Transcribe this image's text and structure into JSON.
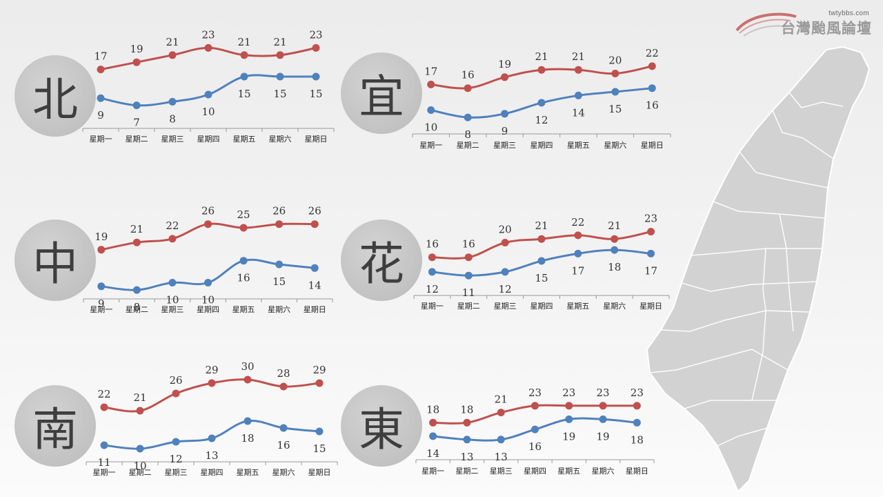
{
  "logo": {
    "site": "twtybbs.com",
    "brand": "台灣颱風論壇"
  },
  "colors": {
    "high": "#c0504d",
    "low": "#4f81bd",
    "axis": "#999999",
    "text": "#333333"
  },
  "regions": [
    {
      "id": "north",
      "char": "北"
    },
    {
      "id": "yilan",
      "char": "宜"
    },
    {
      "id": "central",
      "char": "中"
    },
    {
      "id": "hualien",
      "char": "花"
    },
    {
      "id": "south",
      "char": "南"
    },
    {
      "id": "east",
      "char": "東"
    }
  ],
  "chart_data": [
    {
      "type": "line",
      "region": "北",
      "categories": [
        "星期一",
        "星期二",
        "星期三",
        "星期四",
        "星期五",
        "星期六",
        "星期日"
      ],
      "series": [
        {
          "values": [
            17,
            19,
            21,
            23,
            21,
            21,
            23
          ]
        },
        {
          "values": [
            9,
            7,
            8,
            10,
            15,
            15,
            15
          ]
        }
      ]
    },
    {
      "type": "line",
      "region": "宜",
      "categories": [
        "星期一",
        "星期二",
        "星期三",
        "星期四",
        "星期五",
        "星期六",
        "星期日"
      ],
      "series": [
        {
          "values": [
            17,
            16,
            19,
            21,
            21,
            20,
            22
          ]
        },
        {
          "values": [
            10,
            8,
            9,
            12,
            14,
            15,
            16
          ]
        }
      ]
    },
    {
      "type": "line",
      "region": "中",
      "categories": [
        "星期一",
        "星期二",
        "星期三",
        "星期四",
        "星期五",
        "星期六",
        "星期日"
      ],
      "series": [
        {
          "values": [
            19,
            21,
            22,
            26,
            25,
            26,
            26
          ]
        },
        {
          "values": [
            9,
            8,
            10,
            10,
            16,
            15,
            14
          ]
        }
      ]
    },
    {
      "type": "line",
      "region": "花",
      "categories": [
        "星期一",
        "星期二",
        "星期三",
        "星期四",
        "星期五",
        "星期六",
        "星期日"
      ],
      "series": [
        {
          "values": [
            16,
            16,
            20,
            21,
            22,
            21,
            23
          ]
        },
        {
          "values": [
            12,
            11,
            12,
            15,
            17,
            18,
            17
          ]
        }
      ]
    },
    {
      "type": "line",
      "region": "南",
      "categories": [
        "星期一",
        "星期二",
        "星期三",
        "星期四",
        "星期五",
        "星期六",
        "星期日"
      ],
      "series": [
        {
          "values": [
            22,
            21,
            26,
            29,
            30,
            28,
            29
          ]
        },
        {
          "values": [
            11,
            10,
            12,
            13,
            18,
            16,
            15
          ]
        }
      ]
    },
    {
      "type": "line",
      "region": "東",
      "categories": [
        "星期一",
        "星期二",
        "星期三",
        "星期四",
        "星期五",
        "星期六",
        "星期日"
      ],
      "series": [
        {
          "values": [
            18,
            18,
            21,
            23,
            23,
            23,
            23
          ]
        },
        {
          "values": [
            14,
            13,
            13,
            16,
            19,
            19,
            18
          ]
        }
      ]
    }
  ]
}
